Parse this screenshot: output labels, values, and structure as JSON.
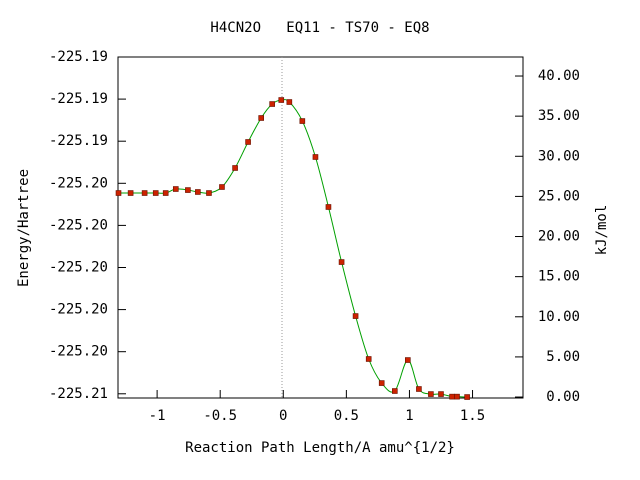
{
  "chart_data": {
    "type": "line",
    "title": "H4CN2O   EQ11 - TS70 - EQ8",
    "xlabel": "Reaction Path Length/A amu^{1/2}",
    "ylabel": "Energy/Hartree",
    "y2label": "kJ/mol",
    "xlim": [
      -1.31,
      1.9
    ],
    "xticks": [
      -1,
      -0.5,
      0,
      0.5,
      1,
      1.5
    ],
    "ylim": [
      -225.2102,
      -225.194
    ],
    "yticks": [
      {
        "value": -225.21,
        "label": "-225.21"
      },
      {
        "value": -225.208,
        "label": "-225.20"
      },
      {
        "value": -225.206,
        "label": "-225.20"
      },
      {
        "value": -225.204,
        "label": "-225.20"
      },
      {
        "value": -225.202,
        "label": "-225.20"
      },
      {
        "value": -225.2,
        "label": "-225.20"
      },
      {
        "value": -225.198,
        "label": "-225.19"
      },
      {
        "value": -225.196,
        "label": "-225.19"
      },
      {
        "value": -225.194,
        "label": "-225.19"
      }
    ],
    "y2lim": [
      -0.12,
      42.37
    ],
    "y2ticks": [
      {
        "value": 0,
        "label": "0.00"
      },
      {
        "value": 5,
        "label": "5.00"
      },
      {
        "value": 10,
        "label": "10.00"
      },
      {
        "value": 15,
        "label": "15.00"
      },
      {
        "value": 20,
        "label": "20.00"
      },
      {
        "value": 25,
        "label": "25.00"
      },
      {
        "value": 30,
        "label": "30.00"
      },
      {
        "value": 35,
        "label": "35.00"
      },
      {
        "value": 40,
        "label": "40.00"
      }
    ],
    "series": [
      {
        "color": "#00a000",
        "marker_color": "#cc2200",
        "axis": "y2",
        "x": [
          -1.306,
          -1.21,
          -1.099,
          -1.011,
          -0.932,
          -0.852,
          -0.756,
          -0.677,
          -0.589,
          -0.486,
          -0.382,
          -0.279,
          -0.175,
          -0.088,
          -0.016,
          0.048,
          0.151,
          0.255,
          0.358,
          0.462,
          0.573,
          0.677,
          0.78,
          0.884,
          0.987,
          1.075,
          1.17,
          1.25,
          1.338,
          1.377,
          1.457
        ],
        "values": [
          25.42,
          25.42,
          25.42,
          25.42,
          25.42,
          25.92,
          25.79,
          25.55,
          25.42,
          26.17,
          28.54,
          31.78,
          34.77,
          36.51,
          37.01,
          36.76,
          34.39,
          29.91,
          23.68,
          16.82,
          10.09,
          4.74,
          1.74,
          0.75,
          4.61,
          1.0,
          0.37,
          0.37,
          0.05,
          0.05,
          0.0
        ]
      }
    ]
  }
}
